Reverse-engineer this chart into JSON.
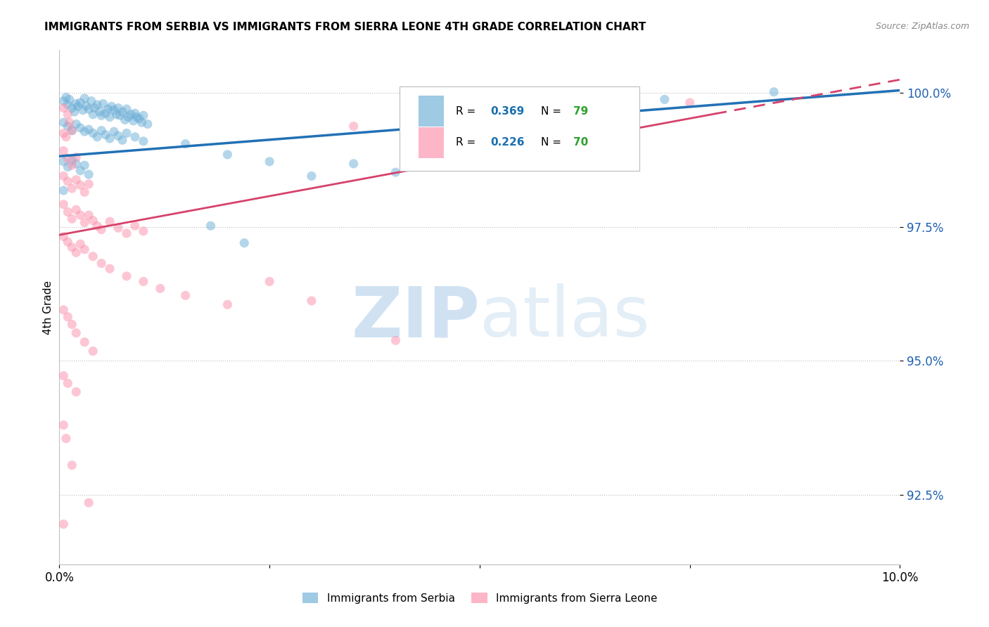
{
  "title": "IMMIGRANTS FROM SERBIA VS IMMIGRANTS FROM SIERRA LEONE 4TH GRADE CORRELATION CHART",
  "source": "Source: ZipAtlas.com",
  "ylabel": "4th Grade",
  "y_ticks": [
    92.5,
    95.0,
    97.5,
    100.0
  ],
  "y_tick_labels": [
    "92.5%",
    "95.0%",
    "97.5%",
    "100.0%"
  ],
  "xmin": 0.0,
  "xmax": 10.0,
  "ymin": 91.2,
  "ymax": 100.8,
  "serbia_R": 0.369,
  "serbia_N": 79,
  "sierra_leone_R": 0.226,
  "sierra_leone_N": 70,
  "serbia_color": "#6baed6",
  "sierra_leone_color": "#fc8faa",
  "serbia_line_color": "#2171b5",
  "sierra_leone_line_color": "#d6426a",
  "legend_R_color": "#1a6faf",
  "legend_N_color": "#2ca02c",
  "watermark_zip": "ZIP",
  "watermark_atlas": "atlas",
  "serbia_line_x0": 0.0,
  "serbia_line_x1": 10.0,
  "serbia_line_y0": 98.82,
  "serbia_line_y1": 100.05,
  "sl_line_x0": 0.0,
  "sl_line_x1": 10.0,
  "sl_line_y0": 97.35,
  "sl_line_y1": 100.25,
  "sl_solid_end": 7.8,
  "serbia_scatter": [
    [
      0.05,
      99.85
    ],
    [
      0.08,
      99.92
    ],
    [
      0.1,
      99.78
    ],
    [
      0.12,
      99.88
    ],
    [
      0.15,
      99.72
    ],
    [
      0.18,
      99.65
    ],
    [
      0.2,
      99.8
    ],
    [
      0.22,
      99.75
    ],
    [
      0.25,
      99.82
    ],
    [
      0.28,
      99.68
    ],
    [
      0.3,
      99.9
    ],
    [
      0.32,
      99.76
    ],
    [
      0.35,
      99.7
    ],
    [
      0.38,
      99.85
    ],
    [
      0.4,
      99.6
    ],
    [
      0.42,
      99.72
    ],
    [
      0.45,
      99.78
    ],
    [
      0.48,
      99.65
    ],
    [
      0.5,
      99.58
    ],
    [
      0.52,
      99.8
    ],
    [
      0.55,
      99.62
    ],
    [
      0.58,
      99.7
    ],
    [
      0.6,
      99.55
    ],
    [
      0.62,
      99.75
    ],
    [
      0.65,
      99.68
    ],
    [
      0.68,
      99.6
    ],
    [
      0.7,
      99.72
    ],
    [
      0.72,
      99.58
    ],
    [
      0.75,
      99.65
    ],
    [
      0.78,
      99.5
    ],
    [
      0.8,
      99.7
    ],
    [
      0.82,
      99.55
    ],
    [
      0.85,
      99.6
    ],
    [
      0.88,
      99.48
    ],
    [
      0.9,
      99.62
    ],
    [
      0.92,
      99.55
    ],
    [
      0.95,
      99.52
    ],
    [
      0.98,
      99.45
    ],
    [
      1.0,
      99.58
    ],
    [
      1.05,
      99.42
    ],
    [
      0.05,
      99.45
    ],
    [
      0.1,
      99.38
    ],
    [
      0.15,
      99.3
    ],
    [
      0.2,
      99.42
    ],
    [
      0.25,
      99.35
    ],
    [
      0.3,
      99.28
    ],
    [
      0.35,
      99.32
    ],
    [
      0.4,
      99.25
    ],
    [
      0.45,
      99.18
    ],
    [
      0.5,
      99.3
    ],
    [
      0.55,
      99.22
    ],
    [
      0.6,
      99.15
    ],
    [
      0.65,
      99.28
    ],
    [
      0.7,
      99.2
    ],
    [
      0.75,
      99.12
    ],
    [
      0.8,
      99.25
    ],
    [
      0.9,
      99.18
    ],
    [
      1.0,
      99.1
    ],
    [
      1.5,
      99.05
    ],
    [
      2.0,
      98.85
    ],
    [
      2.5,
      98.72
    ],
    [
      3.0,
      98.45
    ],
    [
      3.5,
      98.68
    ],
    [
      4.0,
      98.52
    ],
    [
      5.0,
      99.6
    ],
    [
      6.0,
      99.75
    ],
    [
      7.2,
      99.88
    ],
    [
      8.5,
      100.02
    ],
    [
      0.05,
      98.72
    ],
    [
      0.1,
      98.62
    ],
    [
      0.15,
      98.75
    ],
    [
      0.2,
      98.68
    ],
    [
      0.25,
      98.55
    ],
    [
      0.3,
      98.65
    ],
    [
      0.35,
      98.48
    ],
    [
      1.8,
      97.52
    ],
    [
      2.2,
      97.2
    ],
    [
      0.05,
      98.18
    ]
  ],
  "sierra_leone_scatter": [
    [
      0.05,
      99.72
    ],
    [
      0.1,
      99.6
    ],
    [
      0.12,
      99.45
    ],
    [
      0.05,
      99.25
    ],
    [
      0.08,
      99.18
    ],
    [
      0.15,
      99.3
    ],
    [
      0.05,
      98.92
    ],
    [
      0.1,
      98.78
    ],
    [
      0.15,
      98.65
    ],
    [
      0.2,
      98.8
    ],
    [
      0.05,
      98.45
    ],
    [
      0.1,
      98.35
    ],
    [
      0.15,
      98.22
    ],
    [
      0.2,
      98.38
    ],
    [
      0.25,
      98.28
    ],
    [
      0.3,
      98.15
    ],
    [
      0.35,
      98.3
    ],
    [
      0.05,
      97.92
    ],
    [
      0.1,
      97.78
    ],
    [
      0.15,
      97.65
    ],
    [
      0.2,
      97.82
    ],
    [
      0.25,
      97.72
    ],
    [
      0.3,
      97.58
    ],
    [
      0.35,
      97.72
    ],
    [
      0.4,
      97.62
    ],
    [
      0.45,
      97.52
    ],
    [
      0.5,
      97.45
    ],
    [
      0.6,
      97.6
    ],
    [
      0.7,
      97.48
    ],
    [
      0.8,
      97.38
    ],
    [
      0.9,
      97.52
    ],
    [
      1.0,
      97.42
    ],
    [
      0.05,
      97.32
    ],
    [
      0.1,
      97.22
    ],
    [
      0.15,
      97.12
    ],
    [
      0.2,
      97.02
    ],
    [
      0.25,
      97.18
    ],
    [
      0.3,
      97.08
    ],
    [
      0.4,
      96.95
    ],
    [
      0.5,
      96.82
    ],
    [
      0.6,
      96.72
    ],
    [
      0.8,
      96.58
    ],
    [
      1.0,
      96.48
    ],
    [
      1.2,
      96.35
    ],
    [
      1.5,
      96.22
    ],
    [
      2.0,
      96.05
    ],
    [
      0.05,
      95.95
    ],
    [
      0.1,
      95.82
    ],
    [
      0.15,
      95.68
    ],
    [
      0.2,
      95.52
    ],
    [
      0.3,
      95.35
    ],
    [
      0.4,
      95.18
    ],
    [
      0.05,
      94.72
    ],
    [
      0.1,
      94.58
    ],
    [
      0.2,
      94.42
    ],
    [
      0.05,
      93.8
    ],
    [
      0.08,
      93.55
    ],
    [
      0.15,
      93.05
    ],
    [
      0.35,
      92.35
    ],
    [
      0.05,
      91.95
    ],
    [
      3.5,
      99.38
    ],
    [
      5.0,
      99.65
    ],
    [
      7.5,
      99.82
    ],
    [
      2.5,
      96.48
    ],
    [
      3.0,
      96.12
    ],
    [
      4.0,
      95.38
    ]
  ]
}
